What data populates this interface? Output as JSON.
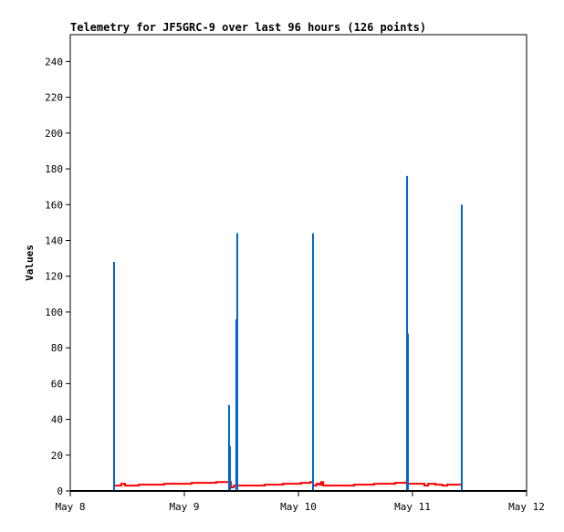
{
  "chart_data": {
    "type": "line",
    "title": "Telemetry for JF5GRC-9 over last 96 hours (126 points)",
    "xlabel": "",
    "ylabel": "Values",
    "xlim": [
      "May 8 00:00",
      "May 12 00:00"
    ],
    "ylim": [
      0,
      255
    ],
    "xticks": [
      "May 8",
      "May 9",
      "May 10",
      "May 11",
      "May 12"
    ],
    "yticks": [
      0,
      20,
      40,
      60,
      80,
      100,
      120,
      140,
      160,
      180,
      200,
      220,
      240
    ],
    "grid": false,
    "series": [
      {
        "color": "#ff0000",
        "style": "step",
        "points": [
          [
            "May 8 09:13",
            3
          ],
          [
            "May 8 10:45",
            4
          ],
          [
            "May 8 11:31",
            3
          ],
          [
            "May 8 14:24",
            3.5
          ],
          [
            "May 8 19:46",
            4
          ],
          [
            "May 9 01:32",
            4.5
          ],
          [
            "May 9 06:43",
            5
          ],
          [
            "May 9 09:13",
            5
          ],
          [
            "May 9 09:48",
            2
          ],
          [
            "May 9 10:24",
            3
          ],
          [
            "May 9 13:03",
            3
          ],
          [
            "May 9 16:54",
            3.5
          ],
          [
            "May 9 20:44",
            4
          ],
          [
            "May 10 00:34",
            4.5
          ],
          [
            "May 10 02:30",
            5
          ],
          [
            "May 10 03:04",
            3
          ],
          [
            "May 10 03:48",
            4
          ],
          [
            "May 10 04:24",
            3.5
          ],
          [
            "May 10 04:48",
            5
          ],
          [
            "May 10 05:12",
            3
          ],
          [
            "May 10 11:43",
            3.5
          ],
          [
            "May 10 15:56",
            4
          ],
          [
            "May 10 20:21",
            4.5
          ],
          [
            "May 10 22:42",
            5
          ],
          [
            "May 10 23:02",
            4
          ],
          [
            "May 11 02:07",
            4
          ],
          [
            "May 11 02:30",
            3
          ],
          [
            "May 11 03:18",
            4
          ],
          [
            "May 11 04:48",
            3.5
          ],
          [
            "May 11 06:18",
            3
          ],
          [
            "May 11 07:18",
            3.5
          ],
          [
            "May 11 10:22",
            4
          ]
        ]
      },
      {
        "color": "#0066cc",
        "style": "impulse",
        "points": [
          [
            "May 8 09:13",
            128
          ],
          [
            "May 9 09:24",
            48
          ],
          [
            "May 9 09:36",
            25
          ],
          [
            "May 9 10:56",
            96
          ],
          [
            "May 9 11:08",
            144
          ],
          [
            "May 10 03:04",
            144
          ],
          [
            "May 10 22:51",
            176
          ],
          [
            "May 10 23:02",
            88
          ],
          [
            "May 11 10:22",
            160
          ]
        ]
      }
    ]
  }
}
